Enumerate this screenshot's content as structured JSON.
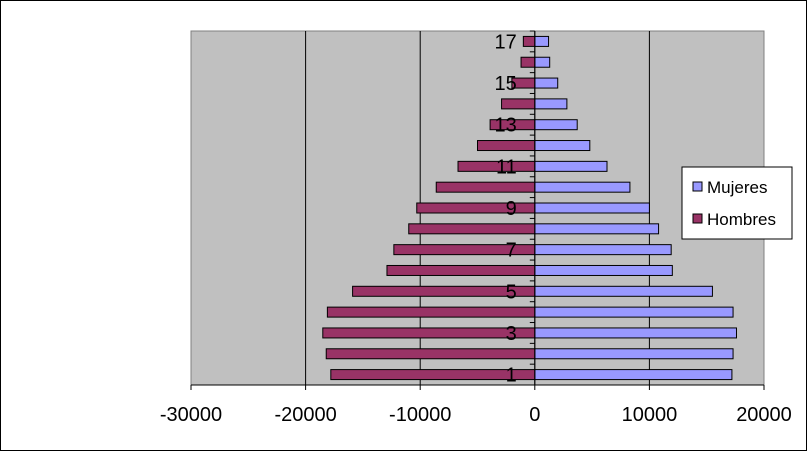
{
  "chart_data": {
    "type": "bar",
    "orientation": "horizontal",
    "stacked": true,
    "categories": [
      "1",
      "2",
      "3",
      "4",
      "5",
      "6",
      "7",
      "8",
      "9",
      "10",
      "11",
      "12",
      "13",
      "14",
      "15",
      "16",
      "17"
    ],
    "category_tick_labels_shown": [
      "1",
      "3",
      "5",
      "7",
      "9",
      "11",
      "13",
      "15",
      "17"
    ],
    "series": [
      {
        "name": "Mujeres",
        "color": "#9999ff",
        "values": [
          17200,
          17300,
          17600,
          17300,
          15500,
          12000,
          11900,
          10800,
          10000,
          8300,
          6300,
          4800,
          3700,
          2800,
          2000,
          1300,
          1200
        ]
      },
      {
        "name": "Hombres",
        "color": "#993366",
        "values": [
          -17800,
          -18200,
          -18500,
          -18100,
          -15900,
          -12900,
          -12300,
          -11000,
          -10300,
          -8600,
          -6700,
          -5000,
          -3900,
          -2900,
          -2000,
          -1200,
          -1000
        ]
      }
    ],
    "xlim": [
      -30000,
      20000
    ],
    "x_tick_labels": [
      "-30000",
      "-20000",
      "-10000",
      "0",
      "10000",
      "20000"
    ],
    "x_ticks": [
      -30000,
      -20000,
      -10000,
      0,
      10000,
      20000
    ],
    "grid": "vertical major gridlines",
    "plot_background": "#c0c0c0",
    "legend_position": "right",
    "title": "",
    "xlabel": "",
    "ylabel": ""
  }
}
